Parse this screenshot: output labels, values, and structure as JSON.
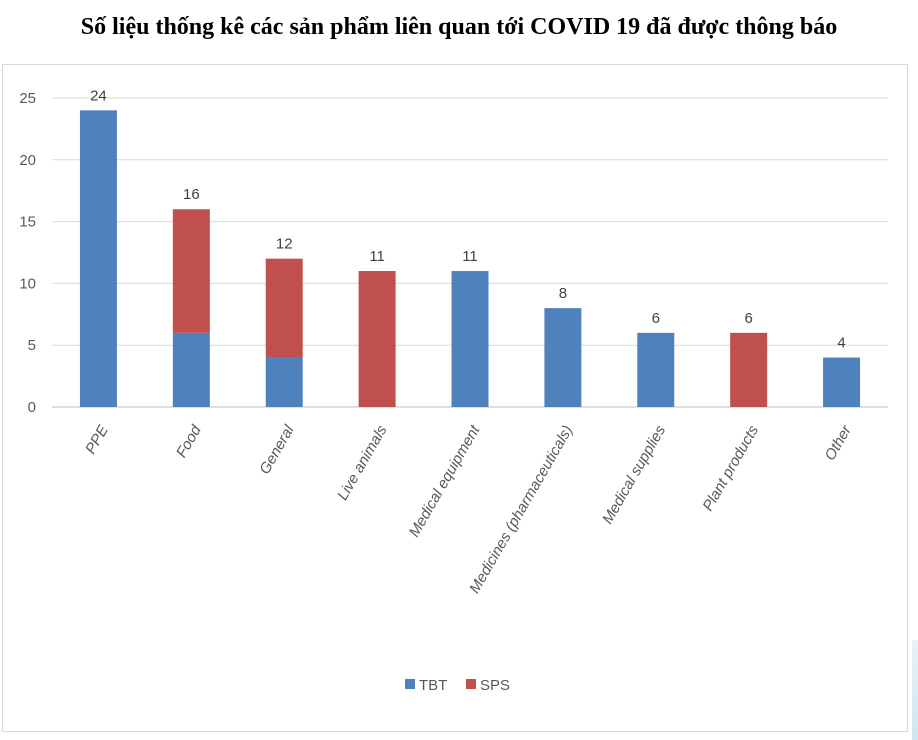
{
  "title": "Số liệu thống kê các sản phẩm liên quan tới COVID 19 đã được thông báo",
  "chart_data": {
    "type": "bar",
    "stacked": true,
    "categories": [
      "PPE",
      "Food",
      "General",
      "Live animals",
      "Medical equipment",
      "Medicines (pharmaceuticals)",
      "Medical supplies",
      "Plant products",
      "Other"
    ],
    "series": [
      {
        "name": "TBT",
        "color": "#4f81bd",
        "values": [
          24,
          6,
          4,
          0,
          11,
          8,
          6,
          0,
          4
        ]
      },
      {
        "name": "SPS",
        "color": "#c0504d",
        "values": [
          0,
          10,
          8,
          11,
          0,
          0,
          0,
          6,
          0
        ]
      }
    ],
    "totals": [
      24,
      16,
      12,
      11,
      11,
      8,
      6,
      6,
      4
    ],
    "yticks": [
      0,
      5,
      10,
      15,
      20,
      25
    ],
    "ylim": [
      0,
      25
    ],
    "grid": true,
    "legend": "bottom-center"
  }
}
